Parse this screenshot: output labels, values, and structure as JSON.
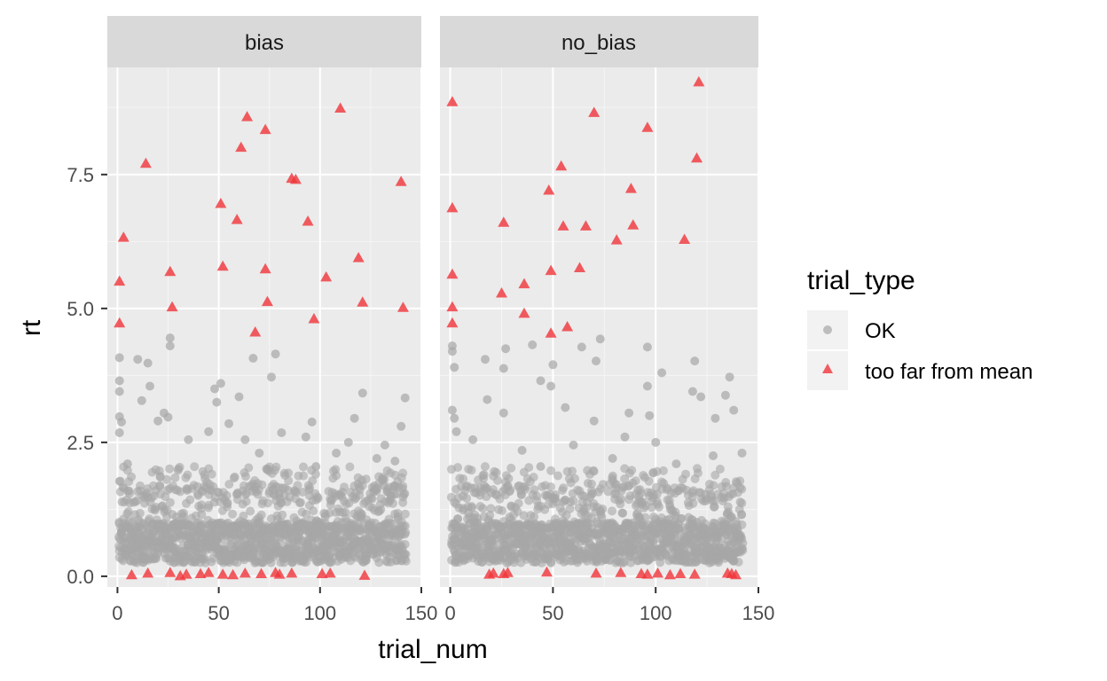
{
  "chart_data": {
    "type": "scatter",
    "xlabel": "trial_num",
    "ylabel": "rt",
    "xlim": [
      -5,
      150
    ],
    "ylim": [
      -0.2,
      9.5
    ],
    "x_ticks": [
      0,
      50,
      100,
      150
    ],
    "y_ticks": [
      0.0,
      2.5,
      5.0,
      7.5
    ],
    "x_tick_labels": [
      "0",
      "50",
      "100",
      "150"
    ],
    "y_tick_labels": [
      "0.0",
      "2.5",
      "5.0",
      "7.5"
    ],
    "grid": true,
    "legend": {
      "title": "trial_type",
      "position": "right",
      "entries": [
        {
          "label": "OK",
          "shape": "circle",
          "color": "#a6a6a6"
        },
        {
          "label": "too far from mean",
          "shape": "triangle",
          "color": "#f0353a"
        }
      ]
    },
    "facets": [
      {
        "label": "bias",
        "too_far_from_mean": [
          [
            1,
            5.5
          ],
          [
            1,
            4.72
          ],
          [
            3,
            6.32
          ],
          [
            14,
            7.7
          ],
          [
            26,
            5.68
          ],
          [
            27,
            5.02
          ],
          [
            51,
            6.95
          ],
          [
            52,
            5.78
          ],
          [
            59,
            6.65
          ],
          [
            61,
            8.0
          ],
          [
            64,
            8.57
          ],
          [
            68,
            4.55
          ],
          [
            73,
            8.33
          ],
          [
            73,
            5.73
          ],
          [
            74,
            5.12
          ],
          [
            86,
            7.42
          ],
          [
            88,
            7.4
          ],
          [
            94,
            6.62
          ],
          [
            97,
            4.8
          ],
          [
            103,
            5.58
          ],
          [
            110,
            8.73
          ],
          [
            119,
            5.94
          ],
          [
            121,
            5.11
          ],
          [
            140,
            7.36
          ],
          [
            141,
            5.01
          ],
          [
            7,
            0.02
          ],
          [
            15,
            0.05
          ],
          [
            26,
            0.06
          ],
          [
            31,
            0.0
          ],
          [
            34,
            0.03
          ],
          [
            41,
            0.04
          ],
          [
            45,
            0.06
          ],
          [
            52,
            0.03
          ],
          [
            57,
            0.02
          ],
          [
            63,
            0.05
          ],
          [
            71,
            0.04
          ],
          [
            78,
            0.06
          ],
          [
            80,
            0.03
          ],
          [
            86,
            0.05
          ],
          [
            101,
            0.04
          ],
          [
            105,
            0.05
          ],
          [
            122,
            0.01
          ]
        ],
        "ok_outliers": [
          [
            1,
            4.08
          ],
          [
            1,
            3.65
          ],
          [
            1,
            3.45
          ],
          [
            1,
            2.98
          ],
          [
            2,
            2.88
          ],
          [
            1,
            2.68
          ],
          [
            10,
            4.05
          ],
          [
            15,
            3.98
          ],
          [
            12,
            3.28
          ],
          [
            16,
            3.55
          ],
          [
            23,
            3.05
          ],
          [
            25,
            2.97
          ],
          [
            26,
            4.45
          ],
          [
            26,
            4.3
          ],
          [
            48,
            3.5
          ],
          [
            49,
            3.25
          ],
          [
            51,
            3.6
          ],
          [
            45,
            2.7
          ],
          [
            60,
            3.35
          ],
          [
            67,
            4.07
          ],
          [
            78,
            4.15
          ],
          [
            76,
            3.72
          ],
          [
            96,
            2.88
          ],
          [
            117,
            2.95
          ],
          [
            121,
            3.42
          ],
          [
            142,
            3.33
          ],
          [
            140,
            2.8
          ],
          [
            132,
            2.45
          ],
          [
            93,
            2.6
          ],
          [
            63,
            2.55
          ],
          [
            35,
            2.55
          ],
          [
            20,
            2.9
          ],
          [
            81,
            2.68
          ],
          [
            108,
            2.3
          ],
          [
            55,
            2.85
          ],
          [
            128,
            2.2
          ],
          [
            5,
            2.1
          ],
          [
            98,
            2.05
          ],
          [
            70,
            2.3
          ],
          [
            114,
            2.5
          ],
          [
            137,
            2.15
          ]
        ]
      },
      {
        "label": "no_bias",
        "too_far_from_mean": [
          [
            1,
            8.85
          ],
          [
            1,
            6.87
          ],
          [
            1,
            5.63
          ],
          [
            1,
            5.02
          ],
          [
            1,
            4.72
          ],
          [
            25,
            5.28
          ],
          [
            26,
            6.6
          ],
          [
            36,
            5.45
          ],
          [
            36,
            4.9
          ],
          [
            48,
            7.2
          ],
          [
            49,
            5.7
          ],
          [
            49,
            4.53
          ],
          [
            54,
            7.65
          ],
          [
            55,
            6.53
          ],
          [
            57,
            4.65
          ],
          [
            63,
            5.75
          ],
          [
            66,
            6.53
          ],
          [
            70,
            8.65
          ],
          [
            81,
            6.27
          ],
          [
            88,
            7.23
          ],
          [
            89,
            6.55
          ],
          [
            96,
            8.37
          ],
          [
            114,
            6.28
          ],
          [
            120,
            7.8
          ],
          [
            121,
            9.22
          ],
          [
            19,
            0.03
          ],
          [
            21,
            0.05
          ],
          [
            26,
            0.04
          ],
          [
            28,
            0.06
          ],
          [
            47,
            0.07
          ],
          [
            71,
            0.05
          ],
          [
            83,
            0.06
          ],
          [
            93,
            0.04
          ],
          [
            96,
            0.03
          ],
          [
            101,
            0.05
          ],
          [
            107,
            0.02
          ],
          [
            112,
            0.04
          ],
          [
            119,
            0.03
          ],
          [
            135,
            0.05
          ],
          [
            137,
            0.04
          ],
          [
            139,
            0.02
          ]
        ],
        "ok_outliers": [
          [
            1,
            4.3
          ],
          [
            1,
            4.2
          ],
          [
            2,
            3.9
          ],
          [
            1,
            3.1
          ],
          [
            2,
            2.95
          ],
          [
            3,
            2.7
          ],
          [
            17,
            4.05
          ],
          [
            18,
            3.3
          ],
          [
            27,
            4.25
          ],
          [
            26,
            3.88
          ],
          [
            26,
            3.05
          ],
          [
            40,
            4.32
          ],
          [
            44,
            3.65
          ],
          [
            49,
            3.55
          ],
          [
            50,
            3.95
          ],
          [
            56,
            3.15
          ],
          [
            64,
            4.28
          ],
          [
            71,
            4.02
          ],
          [
            73,
            4.43
          ],
          [
            70,
            2.9
          ],
          [
            87,
            3.05
          ],
          [
            96,
            4.28
          ],
          [
            96,
            3.55
          ],
          [
            97,
            3.0
          ],
          [
            103,
            3.8
          ],
          [
            119,
            4.02
          ],
          [
            118,
            3.45
          ],
          [
            122,
            3.35
          ],
          [
            134,
            3.38
          ],
          [
            136,
            3.72
          ],
          [
            129,
            2.95
          ],
          [
            138,
            3.1
          ],
          [
            142,
            2.3
          ],
          [
            100,
            2.5
          ],
          [
            35,
            2.35
          ],
          [
            11,
            2.55
          ],
          [
            60,
            2.45
          ],
          [
            79,
            2.2
          ],
          [
            110,
            2.1
          ],
          [
            85,
            2.6
          ],
          [
            44,
            2.05
          ],
          [
            128,
            2.25
          ]
        ]
      }
    ]
  }
}
